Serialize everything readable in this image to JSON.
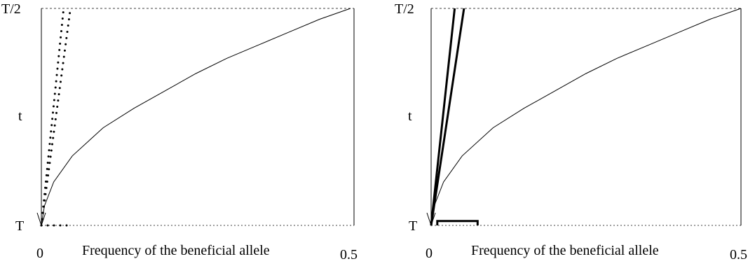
{
  "chart_data": [
    {
      "type": "line",
      "xlabel": "Frequency of the beneficial allele",
      "ylabel": "t",
      "y_tick_labels": [
        "T/2",
        "T"
      ],
      "x_tick_labels": [
        "0",
        "0.5"
      ],
      "xlim": [
        0,
        0.5
      ],
      "y_axis_top": "T/2",
      "y_axis_bottom": "T",
      "series": [
        {
          "style": "solid-thin",
          "x": [
            0.0,
            0.005,
            0.02,
            0.05,
            0.1,
            0.15,
            0.2,
            0.25,
            0.3,
            0.35,
            0.4,
            0.45,
            0.5
          ],
          "y_fraction": [
            0.0,
            0.09,
            0.2,
            0.32,
            0.45,
            0.54,
            0.62,
            0.7,
            0.77,
            0.83,
            0.89,
            0.95,
            1.0
          ]
        },
        {
          "style": "dotted",
          "x": [
            0.0,
            0.036
          ],
          "y_fraction": [
            0.0,
            1.0
          ]
        },
        {
          "style": "dotted",
          "x": [
            0.0,
            0.047
          ],
          "y_fraction": [
            0.0,
            1.0
          ]
        },
        {
          "style": "dotted",
          "x": [
            0.0,
            0.045
          ],
          "y_fraction": [
            0.0,
            0.0
          ]
        }
      ]
    },
    {
      "type": "line",
      "xlabel": "Frequency of the beneficial allele",
      "ylabel": "t",
      "y_tick_labels": [
        "T/2",
        "T"
      ],
      "x_tick_labels": [
        "0",
        "0.5"
      ],
      "xlim": [
        0,
        0.5
      ],
      "y_axis_top": "T/2",
      "y_axis_bottom": "T",
      "series": [
        {
          "style": "solid-thin",
          "x": [
            0.0,
            0.005,
            0.02,
            0.05,
            0.1,
            0.15,
            0.2,
            0.25,
            0.3,
            0.35,
            0.4,
            0.45,
            0.5
          ],
          "y_fraction": [
            0.0,
            0.09,
            0.2,
            0.32,
            0.45,
            0.54,
            0.62,
            0.7,
            0.77,
            0.83,
            0.89,
            0.95,
            1.0
          ]
        },
        {
          "style": "solid-thick",
          "x": [
            0.0,
            0.038
          ],
          "y_fraction": [
            0.0,
            1.0
          ]
        },
        {
          "style": "solid-thick",
          "x": [
            0.0,
            0.053
          ],
          "y_fraction": [
            0.0,
            1.0
          ]
        },
        {
          "style": "solid-thick",
          "x": [
            0.01,
            0.01,
            0.075,
            0.075
          ],
          "y_fraction": [
            0.0,
            0.02,
            0.02,
            0.0
          ]
        }
      ]
    }
  ]
}
